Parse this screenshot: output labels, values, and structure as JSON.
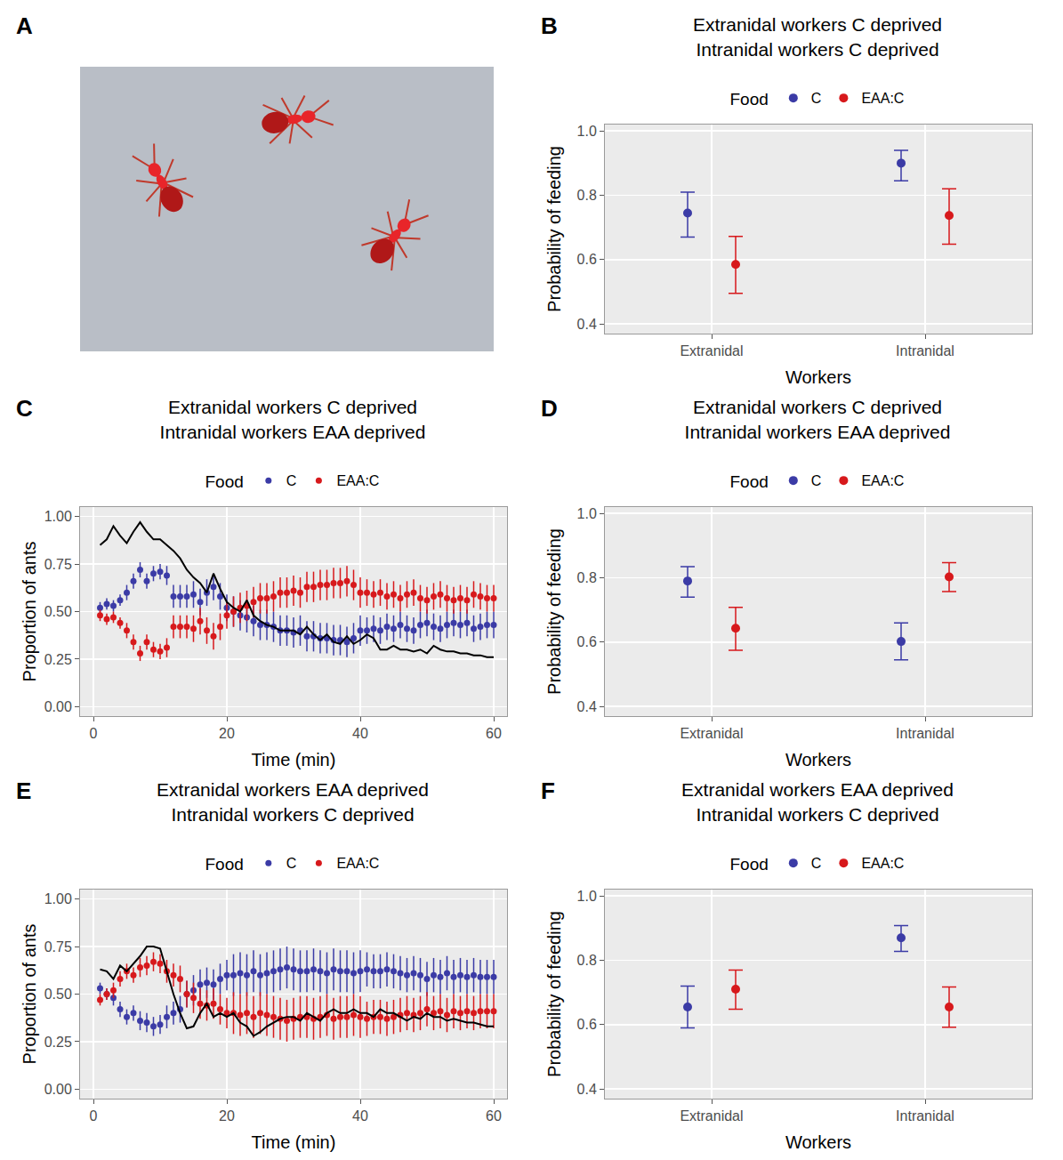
{
  "photo": {
    "panel": "A"
  },
  "chart_data": [
    {
      "panel": "B",
      "type": "scatter",
      "title": "Extranidal workers C deprived",
      "subtitle": "Intranidal workers C deprived",
      "legend_title": "Food",
      "legend": "top",
      "grid": true,
      "x_label": "Workers",
      "y_label": "Probability of feeding",
      "categories": [
        "Extranidal",
        "Intranidal"
      ],
      "ylim": [
        0.37,
        1.02
      ],
      "yticks": [
        0.4,
        0.6,
        0.8,
        {
          "value": 1,
          "label": "1.0"
        }
      ],
      "series": [
        {
          "name": "C",
          "color": "#3b3ba6",
          "values": [
            0.745,
            0.9
          ],
          "lower": [
            0.67,
            0.845
          ],
          "upper": [
            0.81,
            0.94
          ]
        },
        {
          "name": "EAA:C",
          "color": "#d7191c",
          "values": [
            0.585,
            0.737
          ],
          "lower": [
            0.495,
            0.648
          ],
          "upper": [
            0.672,
            0.82
          ]
        }
      ]
    },
    {
      "panel": "C",
      "type": "scatter",
      "title": "Extranidal workers C deprived",
      "subtitle": "Intranidal workers EAA deprived",
      "legend_title": "Food",
      "legend": "top",
      "grid": true,
      "x_label": "Time (min)",
      "y_label": "Proportion of ants",
      "x": [
        1,
        2,
        3,
        4,
        5,
        6,
        7,
        8,
        9,
        10,
        11,
        12,
        13,
        14,
        15,
        16,
        17,
        18,
        19,
        20,
        21,
        22,
        23,
        24,
        25,
        26,
        27,
        28,
        29,
        30,
        31,
        32,
        33,
        34,
        35,
        36,
        37,
        38,
        39,
        40,
        41,
        42,
        43,
        44,
        45,
        46,
        47,
        48,
        49,
        50,
        51,
        52,
        53,
        54,
        55,
        56,
        57,
        58,
        59,
        60
      ],
      "xlim": [
        -2,
        62
      ],
      "xticks": [
        0,
        20,
        40,
        60
      ],
      "ylim": [
        -0.05,
        1.05
      ],
      "yticks": [
        {
          "value": 0,
          "label": "0.00"
        },
        0.25,
        {
          "value": 0.5,
          "label": "0.50"
        },
        0.75,
        {
          "value": 1,
          "label": "1.00"
        }
      ],
      "series": [
        {
          "name": "C",
          "color": "#3b3ba6",
          "type": "scatter",
          "values": [
            0.52,
            0.54,
            0.53,
            0.56,
            0.6,
            0.66,
            0.72,
            0.66,
            0.7,
            0.71,
            0.69,
            0.58,
            0.58,
            0.58,
            0.59,
            0.55,
            0.6,
            0.63,
            0.58,
            0.52,
            0.5,
            0.48,
            0.47,
            0.45,
            0.43,
            0.43,
            0.42,
            0.4,
            0.4,
            0.39,
            0.4,
            0.37,
            0.37,
            0.36,
            0.36,
            0.35,
            0.35,
            0.34,
            0.36,
            0.4,
            0.4,
            0.41,
            0.4,
            0.42,
            0.41,
            0.43,
            0.41,
            0.4,
            0.43,
            0.44,
            0.42,
            0.41,
            0.43,
            0.44,
            0.43,
            0.44,
            0.41,
            0.42,
            0.43,
            0.43
          ],
          "error": [
            0.03,
            0.03,
            0.03,
            0.03,
            0.04,
            0.04,
            0.04,
            0.04,
            0.04,
            0.04,
            0.05,
            0.06,
            0.06,
            0.06,
            0.07,
            0.07,
            0.07,
            0.07,
            0.07,
            0.07,
            0.08,
            0.08,
            0.08,
            0.08,
            0.08,
            0.08,
            0.08,
            0.08,
            0.08,
            0.08,
            0.08,
            0.08,
            0.08,
            0.08,
            0.08,
            0.08,
            0.08,
            0.08,
            0.08,
            0.08,
            0.07,
            0.07,
            0.07,
            0.07,
            0.07,
            0.07,
            0.07,
            0.07,
            0.07,
            0.07,
            0.07,
            0.07,
            0.07,
            0.07,
            0.07,
            0.07,
            0.07,
            0.07,
            0.07,
            0.07
          ]
        },
        {
          "name": "EAA:C",
          "color": "#d7191c",
          "type": "scatter",
          "values": [
            0.48,
            0.46,
            0.47,
            0.44,
            0.4,
            0.34,
            0.28,
            0.34,
            0.3,
            0.29,
            0.31,
            0.42,
            0.42,
            0.42,
            0.41,
            0.45,
            0.4,
            0.37,
            0.42,
            0.48,
            0.5,
            0.52,
            0.53,
            0.55,
            0.57,
            0.57,
            0.58,
            0.6,
            0.6,
            0.61,
            0.6,
            0.63,
            0.63,
            0.64,
            0.64,
            0.65,
            0.65,
            0.66,
            0.64,
            0.6,
            0.6,
            0.59,
            0.6,
            0.58,
            0.59,
            0.57,
            0.59,
            0.6,
            0.57,
            0.56,
            0.58,
            0.59,
            0.57,
            0.56,
            0.57,
            0.56,
            0.59,
            0.58,
            0.57,
            0.57
          ],
          "error": [
            0.03,
            0.03,
            0.03,
            0.03,
            0.04,
            0.04,
            0.04,
            0.04,
            0.04,
            0.04,
            0.05,
            0.06,
            0.06,
            0.06,
            0.07,
            0.07,
            0.07,
            0.07,
            0.07,
            0.07,
            0.08,
            0.08,
            0.08,
            0.08,
            0.08,
            0.08,
            0.08,
            0.08,
            0.08,
            0.08,
            0.08,
            0.08,
            0.08,
            0.08,
            0.08,
            0.08,
            0.08,
            0.08,
            0.08,
            0.08,
            0.07,
            0.07,
            0.07,
            0.07,
            0.07,
            0.07,
            0.07,
            0.07,
            0.07,
            0.07,
            0.07,
            0.07,
            0.07,
            0.07,
            0.07,
            0.07,
            0.07,
            0.07,
            0.07,
            0.07
          ]
        },
        {
          "color": "#000000",
          "type": "line",
          "values": [
            0.85,
            0.88,
            0.95,
            0.9,
            0.86,
            0.92,
            0.97,
            0.92,
            0.88,
            0.88,
            0.85,
            0.82,
            0.78,
            0.72,
            0.68,
            0.65,
            0.6,
            0.7,
            0.62,
            0.55,
            0.52,
            0.5,
            0.56,
            0.48,
            0.45,
            0.43,
            0.42,
            0.4,
            0.4,
            0.4,
            0.38,
            0.42,
            0.38,
            0.35,
            0.38,
            0.34,
            0.33,
            0.37,
            0.33,
            0.35,
            0.38,
            0.36,
            0.3,
            0.3,
            0.32,
            0.3,
            0.3,
            0.29,
            0.3,
            0.28,
            0.32,
            0.3,
            0.29,
            0.29,
            0.28,
            0.28,
            0.27,
            0.27,
            0.26,
            0.26
          ]
        }
      ]
    },
    {
      "panel": "D",
      "type": "scatter",
      "title": "Extranidal workers C deprived",
      "subtitle": "Intranidal workers EAA deprived",
      "legend_title": "Food",
      "legend": "top",
      "grid": true,
      "x_label": "Workers",
      "y_label": "Probability of feeding",
      "categories": [
        "Extranidal",
        "Intranidal"
      ],
      "ylim": [
        0.37,
        1.02
      ],
      "yticks": [
        0.4,
        0.6,
        0.8,
        {
          "value": 1,
          "label": "1.0"
        }
      ],
      "series": [
        {
          "name": "C",
          "color": "#3b3ba6",
          "values": [
            0.79,
            0.602
          ],
          "lower": [
            0.74,
            0.545
          ],
          "upper": [
            0.835,
            0.66
          ]
        },
        {
          "name": "EAA:C",
          "color": "#d7191c",
          "values": [
            0.643,
            0.803
          ],
          "lower": [
            0.575,
            0.757
          ],
          "upper": [
            0.708,
            0.847
          ]
        }
      ]
    },
    {
      "panel": "E",
      "type": "scatter",
      "title": "Extranidal workers EAA deprived",
      "subtitle": "Intranidal workers C deprived",
      "legend_title": "Food",
      "legend": "top",
      "grid": true,
      "x_label": "Time (min)",
      "y_label": "Proportion of ants",
      "x": [
        1,
        2,
        3,
        4,
        5,
        6,
        7,
        8,
        9,
        10,
        11,
        12,
        13,
        14,
        15,
        16,
        17,
        18,
        19,
        20,
        21,
        22,
        23,
        24,
        25,
        26,
        27,
        28,
        29,
        30,
        31,
        32,
        33,
        34,
        35,
        36,
        37,
        38,
        39,
        40,
        41,
        42,
        43,
        44,
        45,
        46,
        47,
        48,
        49,
        50,
        51,
        52,
        53,
        54,
        55,
        56,
        57,
        58,
        59,
        60
      ],
      "xlim": [
        -2,
        62
      ],
      "xticks": [
        0,
        20,
        40,
        60
      ],
      "ylim": [
        -0.05,
        1.05
      ],
      "yticks": [
        {
          "value": 0,
          "label": "0.00"
        },
        0.25,
        {
          "value": 0.5,
          "label": "0.50"
        },
        0.75,
        {
          "value": 1,
          "label": "1.00"
        }
      ],
      "series": [
        {
          "name": "C",
          "color": "#3b3ba6",
          "type": "scatter",
          "values": [
            0.53,
            0.5,
            0.48,
            0.42,
            0.38,
            0.4,
            0.36,
            0.35,
            0.33,
            0.34,
            0.38,
            0.4,
            0.42,
            0.5,
            0.52,
            0.55,
            0.56,
            0.55,
            0.58,
            0.6,
            0.6,
            0.61,
            0.6,
            0.62,
            0.6,
            0.61,
            0.62,
            0.63,
            0.64,
            0.63,
            0.62,
            0.62,
            0.63,
            0.62,
            0.61,
            0.63,
            0.62,
            0.62,
            0.61,
            0.62,
            0.63,
            0.62,
            0.62,
            0.63,
            0.62,
            0.61,
            0.6,
            0.61,
            0.6,
            0.58,
            0.6,
            0.59,
            0.61,
            0.59,
            0.6,
            0.59,
            0.6,
            0.59,
            0.59,
            0.59
          ],
          "error": [
            0.03,
            0.03,
            0.04,
            0.04,
            0.04,
            0.04,
            0.05,
            0.05,
            0.05,
            0.05,
            0.06,
            0.06,
            0.07,
            0.07,
            0.08,
            0.08,
            0.08,
            0.08,
            0.08,
            0.08,
            0.11,
            0.11,
            0.11,
            0.11,
            0.11,
            0.11,
            0.11,
            0.11,
            0.11,
            0.11,
            0.11,
            0.11,
            0.11,
            0.11,
            0.11,
            0.11,
            0.11,
            0.11,
            0.11,
            0.11,
            0.09,
            0.09,
            0.09,
            0.09,
            0.09,
            0.09,
            0.09,
            0.09,
            0.09,
            0.09,
            0.09,
            0.09,
            0.09,
            0.09,
            0.09,
            0.09,
            0.09,
            0.09,
            0.09,
            0.09
          ]
        },
        {
          "name": "EAA:C",
          "color": "#d7191c",
          "type": "scatter",
          "values": [
            0.47,
            0.5,
            0.52,
            0.58,
            0.62,
            0.6,
            0.64,
            0.65,
            0.67,
            0.66,
            0.62,
            0.6,
            0.58,
            0.5,
            0.48,
            0.45,
            0.44,
            0.45,
            0.42,
            0.4,
            0.4,
            0.39,
            0.4,
            0.38,
            0.4,
            0.39,
            0.38,
            0.37,
            0.36,
            0.37,
            0.38,
            0.38,
            0.37,
            0.38,
            0.39,
            0.37,
            0.38,
            0.38,
            0.39,
            0.38,
            0.37,
            0.38,
            0.38,
            0.37,
            0.38,
            0.39,
            0.4,
            0.39,
            0.4,
            0.42,
            0.4,
            0.41,
            0.39,
            0.41,
            0.4,
            0.41,
            0.4,
            0.41,
            0.41,
            0.41
          ],
          "error": [
            0.03,
            0.03,
            0.04,
            0.04,
            0.04,
            0.04,
            0.05,
            0.05,
            0.05,
            0.05,
            0.06,
            0.06,
            0.07,
            0.07,
            0.08,
            0.08,
            0.08,
            0.08,
            0.08,
            0.08,
            0.11,
            0.11,
            0.11,
            0.11,
            0.11,
            0.11,
            0.11,
            0.11,
            0.11,
            0.11,
            0.11,
            0.11,
            0.11,
            0.11,
            0.11,
            0.11,
            0.11,
            0.11,
            0.11,
            0.11,
            0.09,
            0.09,
            0.09,
            0.09,
            0.09,
            0.09,
            0.09,
            0.09,
            0.09,
            0.09,
            0.09,
            0.09,
            0.09,
            0.09,
            0.09,
            0.09,
            0.09,
            0.09,
            0.09,
            0.09
          ]
        },
        {
          "color": "#000000",
          "type": "line",
          "values": [
            0.63,
            0.62,
            0.58,
            0.65,
            0.62,
            0.66,
            0.7,
            0.75,
            0.75,
            0.74,
            0.62,
            0.5,
            0.4,
            0.32,
            0.33,
            0.4,
            0.45,
            0.38,
            0.4,
            0.38,
            0.4,
            0.35,
            0.33,
            0.28,
            0.3,
            0.33,
            0.35,
            0.37,
            0.38,
            0.38,
            0.36,
            0.4,
            0.38,
            0.36,
            0.4,
            0.42,
            0.4,
            0.4,
            0.42,
            0.4,
            0.4,
            0.38,
            0.42,
            0.4,
            0.4,
            0.38,
            0.36,
            0.38,
            0.37,
            0.4,
            0.38,
            0.38,
            0.36,
            0.37,
            0.36,
            0.35,
            0.35,
            0.34,
            0.33,
            0.33
          ]
        }
      ]
    },
    {
      "panel": "F",
      "type": "scatter",
      "title": "Extranidal workers EAA deprived",
      "subtitle": "Intranidal workers C deprived",
      "legend_title": "Food",
      "legend": "top",
      "grid": true,
      "x_label": "Workers",
      "y_label": "Probability of feeding",
      "categories": [
        "Extranidal",
        "Intranidal"
      ],
      "ylim": [
        0.37,
        1.02
      ],
      "yticks": [
        0.4,
        0.6,
        0.8,
        {
          "value": 1,
          "label": "1.0"
        }
      ],
      "series": [
        {
          "name": "C",
          "color": "#3b3ba6",
          "values": [
            0.655,
            0.87
          ],
          "lower": [
            0.59,
            0.828
          ],
          "upper": [
            0.72,
            0.908
          ]
        },
        {
          "name": "EAA:C",
          "color": "#d7191c",
          "values": [
            0.71,
            0.655
          ],
          "lower": [
            0.648,
            0.592
          ],
          "upper": [
            0.77,
            0.717
          ]
        }
      ]
    }
  ]
}
